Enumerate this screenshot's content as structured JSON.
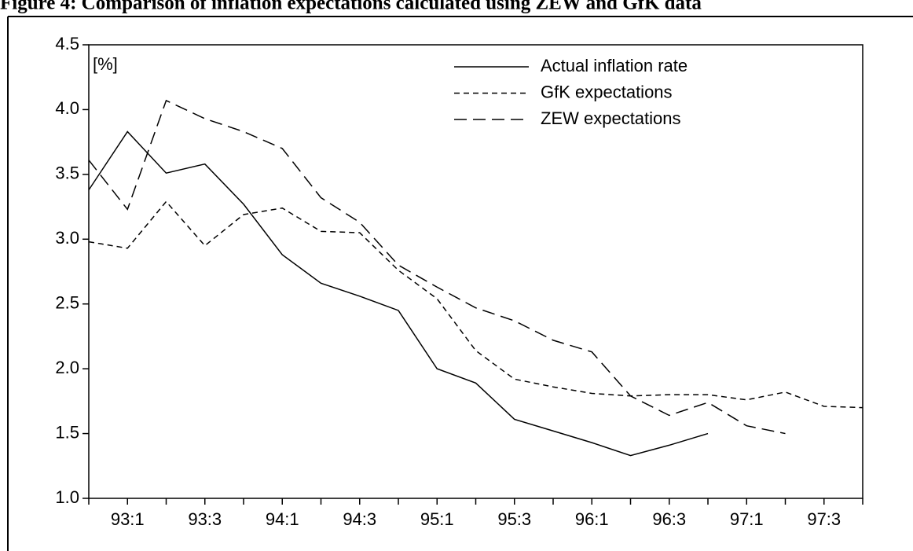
{
  "chart_data": {
    "type": "line",
    "title": "Figure 4:   Comparison of inflation expectations calculated using ZEW and GfK data",
    "y_label": "[%]",
    "categories": [
      null,
      "93:1",
      null,
      "93:3",
      null,
      "94:1",
      null,
      "94:3",
      null,
      "95:1",
      null,
      "95:3",
      null,
      "96:1",
      null,
      "96:3",
      null,
      "97:1",
      null,
      "97:3",
      null
    ],
    "ylim": [
      1.0,
      4.5
    ],
    "yticks": [
      {
        "value": 1,
        "label": "1.0"
      },
      1.5,
      {
        "value": 2,
        "label": "2.0"
      },
      2.5,
      {
        "value": 3,
        "label": "3.0"
      },
      3.5,
      {
        "value": 4,
        "label": "4.0"
      },
      4.5
    ],
    "legend": "upper right",
    "series": [
      {
        "name": "Actual inflation rate",
        "color": "#000000",
        "linestyle": "solid",
        "values": [
          3.38,
          3.83,
          3.51,
          3.58,
          3.27,
          2.88,
          2.66,
          2.56,
          2.45,
          2.0,
          1.89,
          1.61,
          1.52,
          1.43,
          1.33,
          1.41,
          1.5,
          null,
          null,
          null,
          null
        ]
      },
      {
        "name": "GfK expectations",
        "color": "#000000",
        "linestyle": "dashed",
        "values": [
          2.98,
          2.93,
          3.29,
          2.95,
          3.19,
          3.24,
          3.06,
          3.05,
          2.76,
          2.54,
          2.14,
          1.92,
          1.86,
          1.81,
          1.79,
          1.8,
          1.8,
          1.76,
          1.82,
          1.71,
          1.7
        ]
      },
      {
        "name": "ZEW expectations",
        "color": "#000000",
        "linestyle": "longdash",
        "values": [
          3.61,
          3.23,
          4.07,
          3.93,
          3.83,
          3.7,
          3.32,
          3.13,
          2.8,
          2.63,
          2.47,
          2.37,
          2.22,
          2.13,
          1.79,
          1.64,
          1.74,
          1.56,
          1.5,
          null,
          null
        ]
      }
    ]
  }
}
